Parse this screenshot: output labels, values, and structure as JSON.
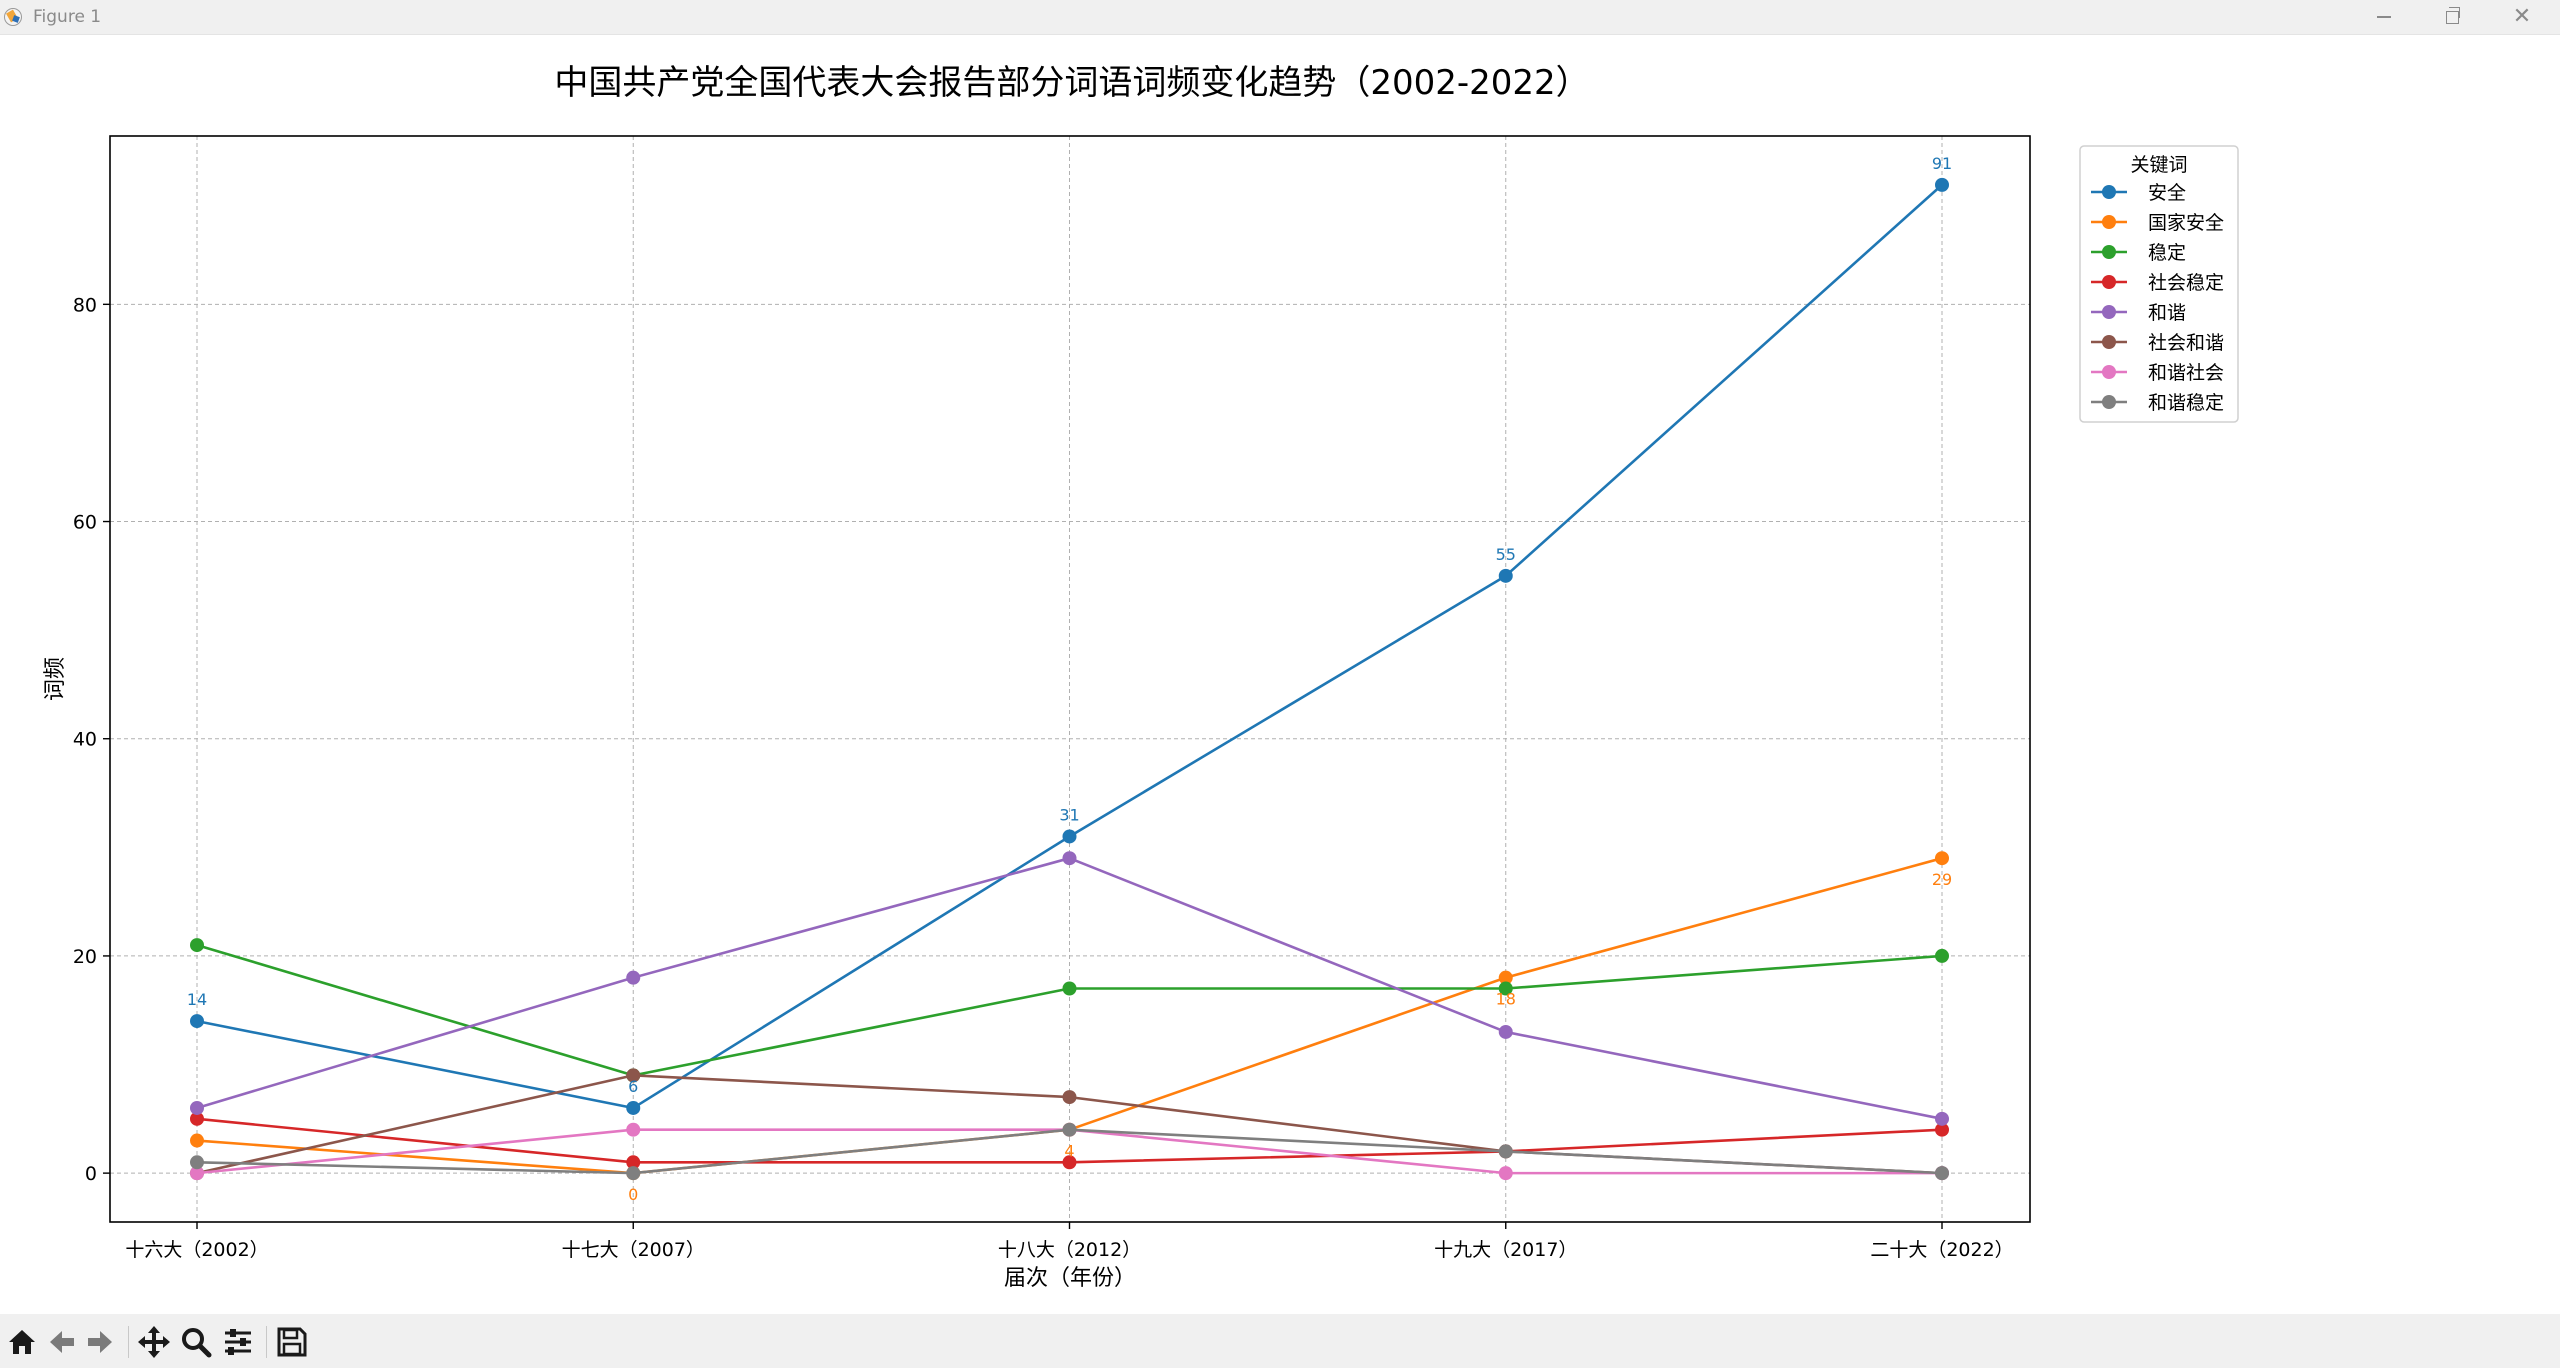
{
  "window": {
    "title": "Figure 1",
    "icons": {
      "app": "matplotlib-icon",
      "minimize": "minimize-icon",
      "maximize": "restore-icon",
      "close": "close-icon"
    }
  },
  "toolbar": {
    "buttons": [
      {
        "name": "home-button",
        "icon": "home-icon"
      },
      {
        "name": "back-button",
        "icon": "arrow-left-icon"
      },
      {
        "name": "forward-button",
        "icon": "arrow-right-icon"
      },
      {
        "name": "pan-button",
        "icon": "move-icon"
      },
      {
        "name": "zoom-button",
        "icon": "magnifier-icon"
      },
      {
        "name": "configure-subplots-button",
        "icon": "sliders-icon"
      },
      {
        "name": "save-button",
        "icon": "floppy-disk-icon"
      }
    ]
  },
  "chart_data": {
    "type": "line",
    "title": "中国共产党全国代表大会报告部分词语词频变化趋势（2002-2022）",
    "xlabel": "届次（年份）",
    "ylabel": "词频",
    "categories": [
      "十六大（2002）",
      "十七大（2007）",
      "十八大（2012）",
      "十九大（2017）",
      "二十大（2022）"
    ],
    "ylim": [
      -4.5,
      95.5
    ],
    "yticks": [
      "0",
      "20",
      "40",
      "60",
      "80"
    ],
    "ytick_values": [
      0,
      20,
      40,
      60,
      80
    ],
    "grid": true,
    "legend": {
      "title": "关键词",
      "placement": "outside-top-right"
    },
    "series": [
      {
        "name": "安全",
        "color": "#1f77b4",
        "values": [
          14,
          6,
          31,
          55,
          91
        ],
        "labels": [
          "14",
          "6",
          "31",
          "55",
          "91"
        ],
        "label_position": "above"
      },
      {
        "name": "国家安全",
        "color": "#ff7f0e",
        "values": [
          3,
          0,
          4,
          18,
          29
        ],
        "labels": [
          "",
          "0",
          "4",
          "18",
          "29"
        ],
        "label_position": "below"
      },
      {
        "name": "稳定",
        "color": "#2ca02c",
        "values": [
          21,
          9,
          17,
          17,
          20
        ]
      },
      {
        "name": "社会稳定",
        "color": "#d62728",
        "values": [
          5,
          1,
          1,
          2,
          4
        ]
      },
      {
        "name": "和谐",
        "color": "#9467bd",
        "values": [
          6,
          18,
          29,
          13,
          5
        ]
      },
      {
        "name": "社会和谐",
        "color": "#8c564b",
        "values": [
          0,
          9,
          7,
          2,
          0
        ]
      },
      {
        "name": "和谐社会",
        "color": "#e377c2",
        "values": [
          0,
          4,
          4,
          0,
          0
        ]
      },
      {
        "name": "和谐稳定",
        "color": "#7f7f7f",
        "values": [
          1,
          0,
          4,
          2,
          0
        ]
      }
    ]
  }
}
